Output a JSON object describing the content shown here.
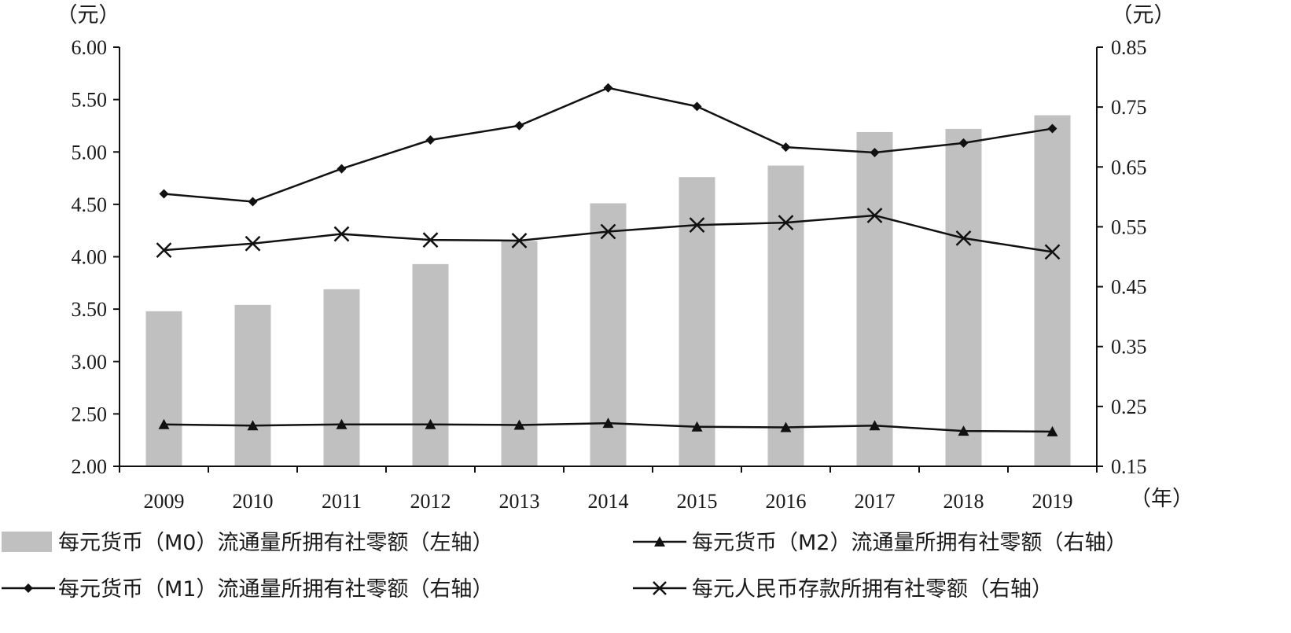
{
  "chart_data": {
    "type": "bar",
    "categories": [
      "2009",
      "2010",
      "2011",
      "2012",
      "2013",
      "2014",
      "2015",
      "2016",
      "2017",
      "2018",
      "2019"
    ],
    "x_unit": "（年）",
    "left_axis": {
      "unit": "（元）",
      "ylim": [
        2.0,
        6.0
      ],
      "ticks": [
        "2.00",
        "2.50",
        "3.00",
        "3.50",
        "4.00",
        "4.50",
        "5.00",
        "5.50",
        "6.00"
      ]
    },
    "right_axis": {
      "unit": "（元）",
      "ylim": [
        0.15,
        0.85
      ],
      "ticks": [
        "0.15",
        "0.25",
        "0.35",
        "0.45",
        "0.55",
        "0.65",
        "0.75",
        "0.85"
      ]
    },
    "grid": false,
    "legend_position": "bottom",
    "series": [
      {
        "name": "每元货币（M0）流通量所拥有社零额（左轴）",
        "kind": "bar",
        "axis": "left",
        "color": "#c0c0c0",
        "marker": "none",
        "values": [
          3.48,
          3.54,
          3.69,
          3.93,
          4.15,
          4.51,
          4.76,
          4.87,
          5.19,
          5.22,
          5.35
        ]
      },
      {
        "name": "每元货币（M2）流通量所拥有社零额（右轴）",
        "kind": "line",
        "axis": "right",
        "color": "#111111",
        "marker": "triangle",
        "values": [
          0.22,
          0.218,
          0.22,
          0.22,
          0.219,
          0.222,
          0.216,
          0.215,
          0.218,
          0.209,
          0.208
        ]
      },
      {
        "name": "每元货币（M1）流通量所拥有社零额（右轴）",
        "kind": "line",
        "axis": "right",
        "color": "#111111",
        "marker": "diamond",
        "values": [
          0.605,
          0.592,
          0.647,
          0.695,
          0.719,
          0.782,
          0.751,
          0.683,
          0.674,
          0.69,
          0.714
        ]
      },
      {
        "name": "每元人民币存款所拥有社零额（右轴）",
        "kind": "line",
        "axis": "right",
        "color": "#111111",
        "marker": "x",
        "values": [
          0.511,
          0.522,
          0.538,
          0.528,
          0.527,
          0.542,
          0.553,
          0.557,
          0.569,
          0.531,
          0.508
        ]
      }
    ]
  }
}
